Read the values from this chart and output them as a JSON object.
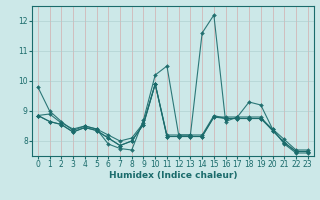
{
  "title": "",
  "xlabel": "Humidex (Indice chaleur)",
  "bg_color": "#cce8e8",
  "grid_color": "#aacccc",
  "line_color": "#1a6b6b",
  "xlim": [
    -0.5,
    23.5
  ],
  "ylim": [
    7.5,
    12.5
  ],
  "yticks": [
    8,
    9,
    10,
    11,
    12
  ],
  "xticks": [
    0,
    1,
    2,
    3,
    4,
    5,
    6,
    7,
    8,
    9,
    10,
    11,
    12,
    13,
    14,
    15,
    16,
    17,
    18,
    19,
    20,
    21,
    22,
    23
  ],
  "series": [
    {
      "x": [
        0,
        1,
        2,
        3,
        4,
        5,
        6,
        7,
        8,
        9,
        10,
        11,
        12,
        13,
        14,
        15,
        16,
        17,
        18,
        19,
        20,
        21,
        22,
        23
      ],
      "y": [
        9.8,
        9.0,
        8.65,
        8.35,
        8.5,
        8.4,
        7.9,
        7.75,
        7.7,
        8.7,
        10.2,
        10.5,
        8.2,
        8.2,
        11.6,
        12.2,
        8.65,
        8.8,
        9.3,
        9.2,
        8.4,
        7.9,
        7.6,
        7.6
      ]
    },
    {
      "x": [
        0,
        1,
        2,
        3,
        4,
        5,
        6,
        7,
        8,
        9,
        10,
        11,
        12,
        13,
        14,
        15,
        16,
        17,
        18,
        19,
        20,
        21,
        22,
        23
      ],
      "y": [
        8.85,
        8.65,
        8.55,
        8.3,
        8.45,
        8.35,
        8.1,
        7.85,
        8.0,
        8.55,
        9.9,
        8.15,
        8.15,
        8.15,
        8.15,
        8.8,
        8.8,
        8.8,
        8.8,
        8.8,
        8.35,
        7.95,
        7.65,
        7.65
      ]
    },
    {
      "x": [
        0,
        1,
        2,
        3,
        4,
        5,
        6,
        7,
        8,
        9,
        10,
        11,
        12,
        13,
        14,
        15,
        16,
        17,
        18,
        19,
        20,
        21,
        22,
        23
      ],
      "y": [
        8.85,
        8.65,
        8.55,
        8.3,
        8.45,
        8.35,
        8.1,
        7.85,
        8.0,
        8.55,
        9.9,
        8.15,
        8.15,
        8.15,
        8.15,
        8.8,
        8.75,
        8.75,
        8.75,
        8.75,
        8.35,
        7.95,
        7.65,
        7.65
      ]
    },
    {
      "x": [
        0,
        1,
        2,
        3,
        4,
        5,
        6,
        7,
        8,
        9,
        10,
        11,
        12,
        13,
        14,
        15,
        16,
        17,
        18,
        19,
        20,
        21,
        22,
        23
      ],
      "y": [
        8.85,
        8.9,
        8.6,
        8.4,
        8.5,
        8.4,
        8.2,
        8.0,
        8.1,
        8.6,
        9.9,
        8.2,
        8.2,
        8.2,
        8.2,
        8.85,
        8.75,
        8.75,
        8.75,
        8.75,
        8.4,
        8.05,
        7.7,
        7.7
      ]
    }
  ]
}
